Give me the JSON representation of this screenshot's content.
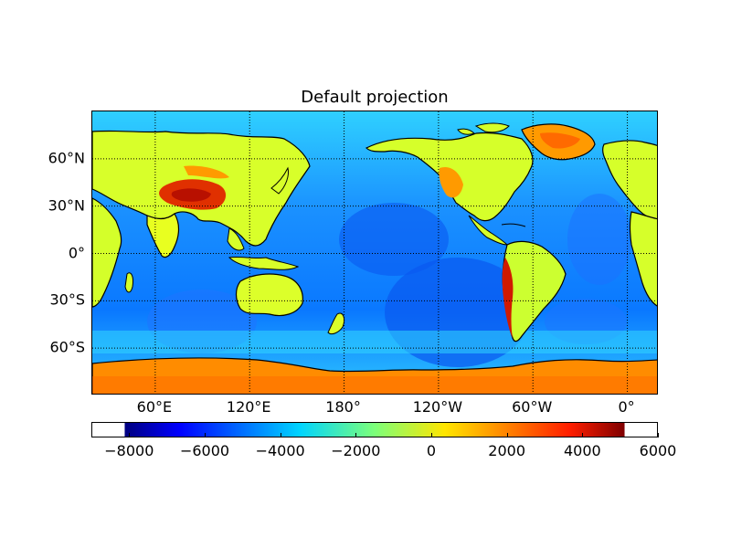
{
  "title": "Default projection",
  "lat_labels": [
    {
      "text": "60°N",
      "lat": 60
    },
    {
      "text": "30°N",
      "lat": 30
    },
    {
      "text": "0°",
      "lat": 0
    },
    {
      "text": "30°S",
      "lat": -30
    },
    {
      "text": "60°S",
      "lat": -60
    }
  ],
  "lon_labels": [
    {
      "text": "60°E",
      "lon": 60
    },
    {
      "text": "120°E",
      "lon": 120
    },
    {
      "text": "180°",
      "lon": 180
    },
    {
      "text": "120°W",
      "lon": 240
    },
    {
      "text": "60°W",
      "lon": 300
    },
    {
      "text": "0°",
      "lon": 360
    }
  ],
  "map": {
    "projection": "cylindrical",
    "lon_range": [
      20,
      380
    ],
    "lat_range": [
      -90,
      90
    ],
    "graticule": "dotted",
    "coastline_color": "#000000"
  },
  "colorbar": {
    "range": [
      -9000,
      6000
    ],
    "ticks": [
      "−8000",
      "−6000",
      "−4000",
      "−2000",
      "0",
      "2000",
      "4000",
      "6000"
    ],
    "tick_values": [
      -8000,
      -6000,
      -4000,
      -2000,
      0,
      2000,
      4000,
      6000
    ],
    "colormap": "jet"
  },
  "colors": {
    "ocean_deep": "#0050ff",
    "ocean_shelf": "#2fd8ff",
    "land_low": "#d6ff2a",
    "land_high": "#ff6000",
    "peaks": "#c00000",
    "ice": "#ff8a00"
  }
}
